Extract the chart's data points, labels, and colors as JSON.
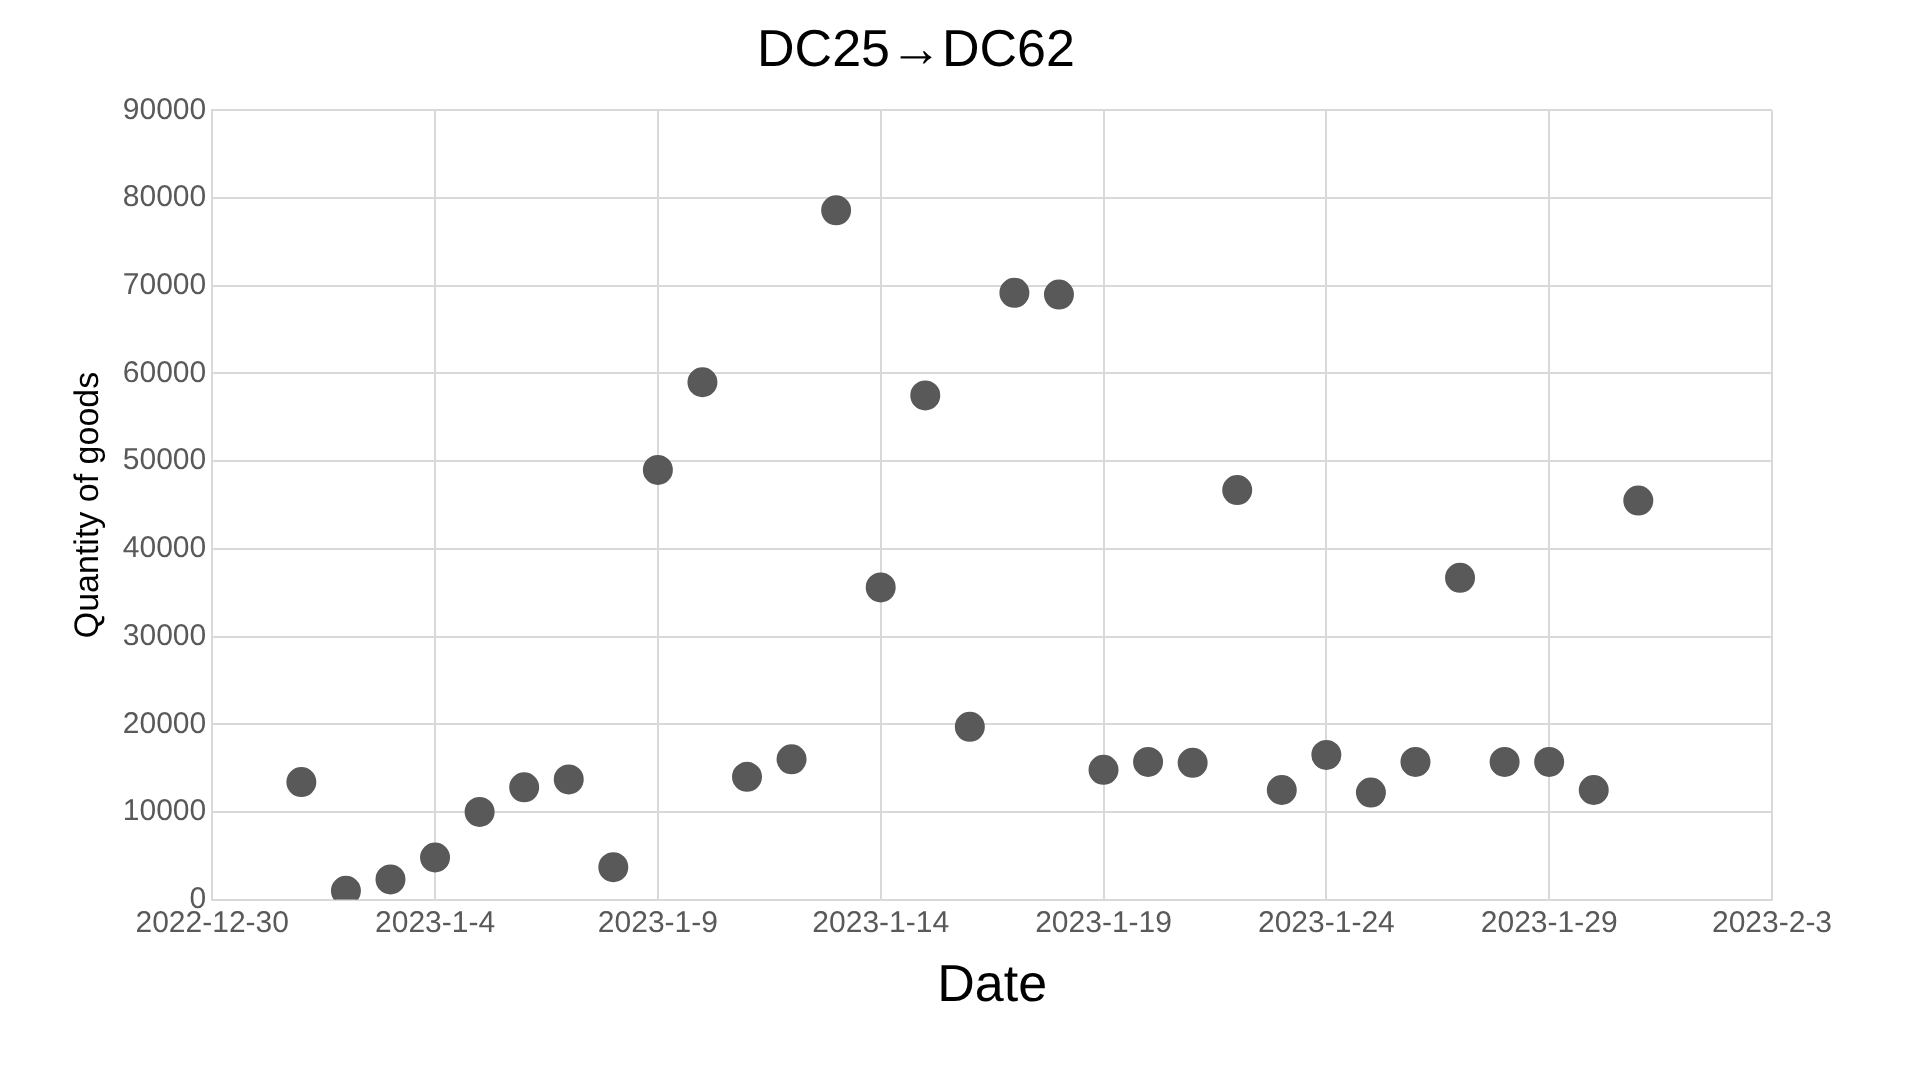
{
  "chart_data": {
    "type": "scatter",
    "title": "DC25→DC62",
    "xlabel": "Date",
    "ylabel": "Quantity of goods",
    "x": [
      "2023-01-01",
      "2023-01-02",
      "2023-01-03",
      "2023-01-04",
      "2023-01-05",
      "2023-01-06",
      "2023-01-07",
      "2023-01-08",
      "2023-01-09",
      "2023-01-10",
      "2023-01-11",
      "2023-01-12",
      "2023-01-13",
      "2023-01-14",
      "2023-01-15",
      "2023-01-16",
      "2023-01-17",
      "2023-01-18",
      "2023-01-19",
      "2023-01-20",
      "2023-01-21",
      "2023-01-22",
      "2023-01-23",
      "2023-01-24",
      "2023-01-25",
      "2023-01-26",
      "2023-01-27",
      "2023-01-28",
      "2023-01-29",
      "2023-01-30",
      "2023-01-31"
    ],
    "series": [
      {
        "color": "#595959",
        "values": [
          13400,
          1000,
          2300,
          4800,
          10000,
          12800,
          13700,
          3700,
          49000,
          59000,
          14000,
          16000,
          78600,
          35600,
          57500,
          19700,
          69200,
          69000,
          14800,
          15700,
          15600,
          46700,
          12500,
          16500,
          12200,
          15700,
          36700,
          15700,
          15700,
          12500,
          45500
        ]
      }
    ],
    "xlim": [
      "2022-12-30",
      "2023-02-03"
    ],
    "xticks": [
      {
        "value": "2022-12-30",
        "label": "2022-12-30"
      },
      {
        "value": "2023-01-04",
        "label": "2023-1-4"
      },
      {
        "value": "2023-01-09",
        "label": "2023-1-9"
      },
      {
        "value": "2023-01-14",
        "label": "2023-1-14"
      },
      {
        "value": "2023-01-19",
        "label": "2023-1-19"
      },
      {
        "value": "2023-01-24",
        "label": "2023-1-24"
      },
      {
        "value": "2023-01-29",
        "label": "2023-1-29"
      },
      {
        "value": "2023-02-03",
        "label": "2023-2-3"
      }
    ],
    "ylim": [
      0,
      90000
    ],
    "yticks": [
      0,
      10000,
      20000,
      30000,
      40000,
      50000,
      60000,
      70000,
      80000,
      90000
    ],
    "grid": true,
    "legend": false,
    "marker": "circle"
  }
}
